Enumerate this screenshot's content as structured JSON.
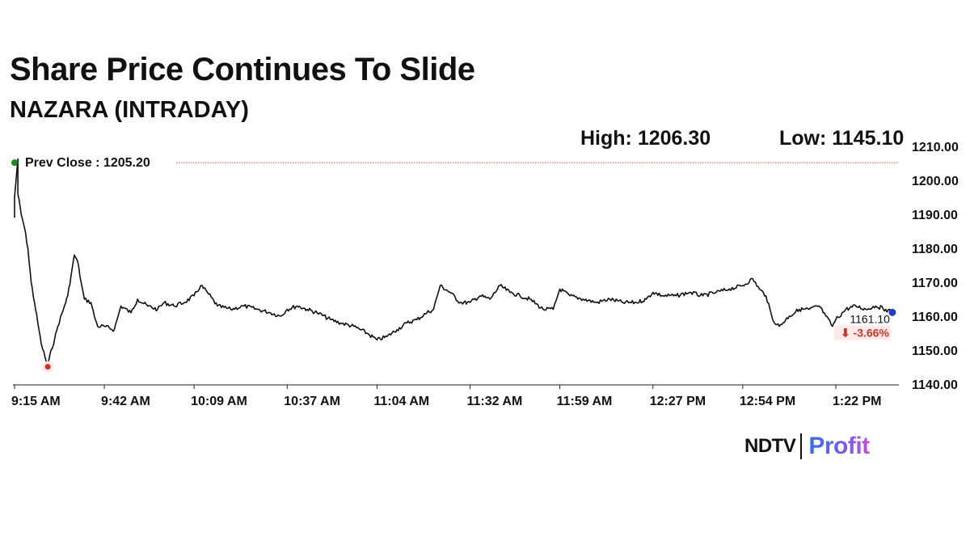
{
  "header": {
    "title": "Share Price Continues To Slide",
    "subtitle": "NAZARA (INTRADAY)",
    "high_label": "High: 1206.30",
    "low_label": "Low: 1145.10"
  },
  "brand": {
    "ndtv": "NDTV",
    "profit": "Profit"
  },
  "colors": {
    "line": "#111111",
    "prev_close_line": "#e0474c",
    "start_marker": "#1a8a1a",
    "low_marker": "#c0392b",
    "end_marker": "#1f3fbf",
    "change_text": "#c0392b",
    "change_bg": "#fde8ea"
  },
  "chart_data": {
    "type": "line",
    "title": "",
    "xlabel": "",
    "ylabel": "",
    "ylim": [
      1140,
      1210
    ],
    "yticks": [
      "1140.00",
      "1150.00",
      "1160.00",
      "1170.00",
      "1180.00",
      "1190.00",
      "1200.00",
      "1210.00"
    ],
    "xticks": [
      "9:15 AM",
      "9:42 AM",
      "10:09 AM",
      "10:37 AM",
      "11:04 AM",
      "11:32 AM",
      "11:59 AM",
      "12:27 PM",
      "12:54 PM",
      "1:22 PM"
    ],
    "grid": false,
    "prev_close": {
      "label": "Prev Close : 1205.20",
      "value": 1205.2
    },
    "last": {
      "value_label": "1161.10",
      "change_label": "⬇ -3.66%",
      "value": 1161.1
    },
    "low_point": {
      "time": "9:25 AM",
      "value": 1145.1
    },
    "series": [
      {
        "values": [
          [
            "9:15 AM",
            1189
          ],
          [
            "9:15 AM",
            1195
          ],
          [
            "9:16 AM",
            1206.3
          ],
          [
            "9:16 AM",
            1196
          ],
          [
            "9:17 AM",
            1190
          ],
          [
            "9:18 AM",
            1186
          ],
          [
            "9:19 AM",
            1180
          ],
          [
            "9:20 AM",
            1170
          ],
          [
            "9:21 AM",
            1164
          ],
          [
            "9:22 AM",
            1158
          ],
          [
            "9:23 AM",
            1152
          ],
          [
            "9:25 AM",
            1145.1
          ],
          [
            "9:26 AM",
            1150
          ],
          [
            "9:27 AM",
            1153
          ],
          [
            "9:28 AM",
            1157
          ],
          [
            "9:30 AM",
            1163
          ],
          [
            "9:31 AM",
            1166
          ],
          [
            "9:32 AM",
            1172
          ],
          [
            "9:33 AM",
            1178
          ],
          [
            "9:34 AM",
            1176
          ],
          [
            "9:35 AM",
            1170
          ],
          [
            "9:36 AM",
            1165
          ],
          [
            "9:38 AM",
            1164
          ],
          [
            "9:39 AM",
            1160
          ],
          [
            "9:40 AM",
            1157
          ],
          [
            "9:42 AM",
            1157
          ],
          [
            "9:45 AM",
            1156
          ],
          [
            "9:47 AM",
            1163
          ],
          [
            "9:50 AM",
            1161
          ],
          [
            "9:52 AM",
            1165
          ],
          [
            "9:55 AM",
            1163
          ],
          [
            "9:58 AM",
            1162
          ],
          [
            "10:00 AM",
            1164
          ],
          [
            "10:03 AM",
            1163
          ],
          [
            "10:06 AM",
            1164
          ],
          [
            "10:09 AM",
            1166
          ],
          [
            "10:11 AM",
            1169
          ],
          [
            "10:13 AM",
            1167
          ],
          [
            "10:16 AM",
            1163
          ],
          [
            "10:20 AM",
            1162
          ],
          [
            "10:24 AM",
            1163
          ],
          [
            "10:28 AM",
            1162
          ],
          [
            "10:32 AM",
            1161
          ],
          [
            "10:35 AM",
            1160
          ],
          [
            "10:37 AM",
            1162
          ],
          [
            "10:40 AM",
            1163
          ],
          [
            "10:43 AM",
            1162
          ],
          [
            "10:46 AM",
            1161
          ],
          [
            "10:50 AM",
            1159
          ],
          [
            "10:53 AM",
            1158
          ],
          [
            "10:57 AM",
            1157
          ],
          [
            "11:01 AM",
            1155
          ],
          [
            "11:04 AM",
            1153
          ],
          [
            "11:07 AM",
            1154
          ],
          [
            "11:10 AM",
            1156
          ],
          [
            "11:13 AM",
            1158
          ],
          [
            "11:16 AM",
            1159
          ],
          [
            "11:19 AM",
            1161
          ],
          [
            "11:21 AM",
            1162
          ],
          [
            "11:23 AM",
            1169
          ],
          [
            "11:26 AM",
            1167
          ],
          [
            "11:29 AM",
            1164
          ],
          [
            "11:32 AM",
            1164
          ],
          [
            "11:35 AM",
            1166
          ],
          [
            "11:38 AM",
            1165
          ],
          [
            "11:41 AM",
            1169
          ],
          [
            "11:44 AM",
            1167
          ],
          [
            "11:47 AM",
            1166
          ],
          [
            "11:50 AM",
            1165
          ],
          [
            "11:54 AM",
            1162
          ],
          [
            "11:57 AM",
            1162
          ],
          [
            "11:59 AM",
            1168
          ],
          [
            "12:02 PM",
            1166
          ],
          [
            "12:06 PM",
            1165
          ],
          [
            "12:10 PM",
            1164
          ],
          [
            "12:14 PM",
            1165
          ],
          [
            "12:18 PM",
            1164
          ],
          [
            "12:22 PM",
            1164
          ],
          [
            "12:25 PM",
            1165
          ],
          [
            "12:27 PM",
            1167
          ],
          [
            "12:30 PM",
            1166
          ],
          [
            "12:34 PM",
            1166
          ],
          [
            "12:38 PM",
            1167
          ],
          [
            "12:42 PM",
            1166
          ],
          [
            "12:46 PM",
            1167
          ],
          [
            "12:50 PM",
            1168
          ],
          [
            "12:54 PM",
            1169
          ],
          [
            "12:57 PM",
            1171
          ],
          [
            "12:59 PM",
            1168
          ],
          [
            "1:01 PM",
            1166
          ],
          [
            "1:03 PM",
            1159
          ],
          [
            "1:05 PM",
            1157
          ],
          [
            "1:08 PM",
            1160
          ],
          [
            "1:11 PM",
            1162
          ],
          [
            "1:14 PM",
            1162
          ],
          [
            "1:17 PM",
            1163
          ],
          [
            "1:19 PM",
            1160
          ],
          [
            "1:21 PM",
            1157
          ],
          [
            "1:22 PM",
            1159
          ],
          [
            "1:25 PM",
            1162
          ],
          [
            "1:28 PM",
            1163
          ],
          [
            "1:31 PM",
            1162
          ],
          [
            "1:34 PM",
            1163
          ],
          [
            "1:37 PM",
            1162
          ],
          [
            "1:39 PM",
            1161.1
          ]
        ]
      }
    ]
  }
}
